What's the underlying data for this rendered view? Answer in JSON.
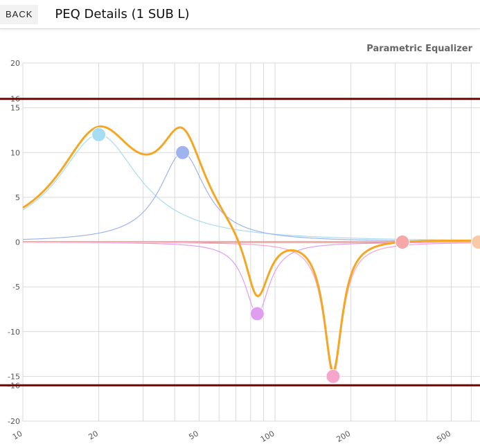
{
  "header": {
    "back_label": "BACK",
    "title": "PEQ Details (1 SUB L)"
  },
  "chart_data": {
    "type": "line",
    "title": "Parametric Equalizer",
    "xscale": "log",
    "xlim": [
      10,
      650
    ],
    "ylim": [
      -20,
      20
    ],
    "y_ticks": [
      -20,
      -16,
      -15,
      -10,
      -5,
      0,
      5,
      10,
      15,
      16,
      20
    ],
    "x_tick_labels": [
      "10",
      "20",
      "50",
      "100",
      "200",
      "500"
    ],
    "grid": true,
    "limit_lines": [
      16,
      -16
    ],
    "filters": [
      {
        "freq": 20,
        "gain": 12,
        "q": 0.9,
        "color": "#a6ddf3"
      },
      {
        "freq": 43,
        "gain": 10,
        "q": 1.6,
        "color": "#9fb3ef"
      },
      {
        "freq": 85,
        "gain": -8,
        "q": 3.0,
        "color": "#df9ef0"
      },
      {
        "freq": 170,
        "gain": -15,
        "q": 4.0,
        "color": "#f6a6cd"
      },
      {
        "freq": 320,
        "gain": 0,
        "q": 1.0,
        "color": "#f6a7a7"
      },
      {
        "freq": 640,
        "gain": 0,
        "q": 1.0,
        "color": "#f9caa7"
      }
    ],
    "colors": {
      "sum_line": "#f5a623",
      "limit_line": "#7a0000",
      "zero_line": "#7a0000",
      "grid": "#d9d9d9"
    }
  }
}
